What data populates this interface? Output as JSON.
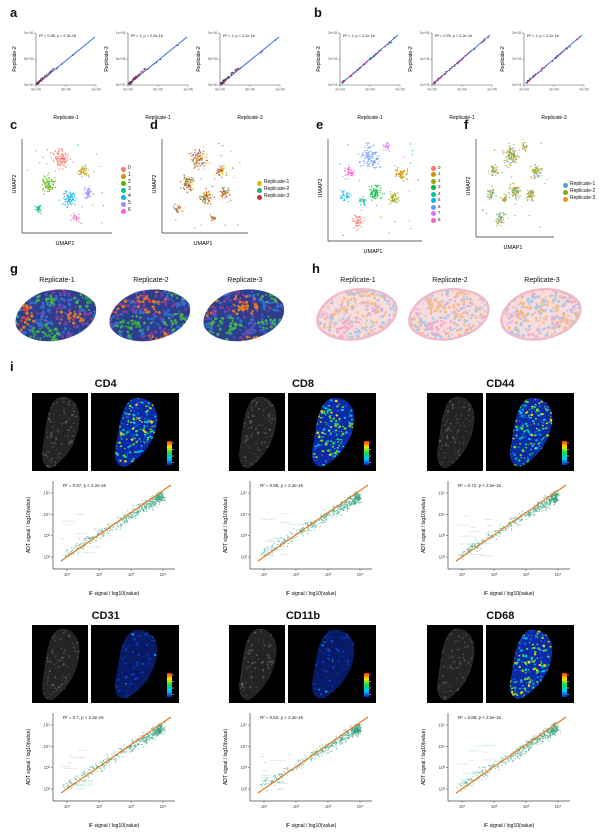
{
  "panels": {
    "a": {
      "label": "a",
      "plots": [
        {
          "annotation": "R² = 0.98, p < 2.2e-16",
          "xlabel": "Replicate-1",
          "ylabel": "Replicate-2"
        },
        {
          "annotation": "R² = 1, p < 2.2e-16",
          "xlabel": "Replicate-1",
          "ylabel": "Replicate-3"
        },
        {
          "annotation": "R² = 1, p < 2.2e-16",
          "xlabel": "Replicate-3",
          "ylabel": "Replicate-2"
        }
      ],
      "xticks": [
        "0e+00",
        "5e+05",
        "1e+06"
      ],
      "yticks": [
        "0e+00",
        "5e+05",
        "1e+06"
      ]
    },
    "b": {
      "label": "b",
      "plots": [
        {
          "annotation": "R² = 1, p < 2.2e-16",
          "xlabel": "Replicate-1",
          "ylabel": "Replicate-3"
        },
        {
          "annotation": "R² = 0.99, p < 2.2e-16",
          "xlabel": "Replicate-1",
          "ylabel": "Replicate-2"
        },
        {
          "annotation": "R² = 1, p < 2.2e-16",
          "xlabel": "Replicate-3",
          "ylabel": "Replicate-2"
        }
      ],
      "xticks": [
        "2e+03",
        "2e+04",
        "2e+05"
      ],
      "yticks": [
        "2e+03",
        "2e+04",
        "2e+05"
      ]
    },
    "c": {
      "label": "c",
      "xlabel": "UMAP1",
      "ylabel": "UMAP2",
      "legend": [
        {
          "label": "0",
          "color": "#F8766D"
        },
        {
          "label": "1",
          "color": "#C49A00"
        },
        {
          "label": "2",
          "color": "#53B400"
        },
        {
          "label": "3",
          "color": "#00C094"
        },
        {
          "label": "4",
          "color": "#00B6EB"
        },
        {
          "label": "5",
          "color": "#A58AFF"
        },
        {
          "label": "6",
          "color": "#FB61D7"
        }
      ]
    },
    "d": {
      "label": "d",
      "xlabel": "UMAP1",
      "ylabel": "UMAP2",
      "legend": [
        {
          "label": "Replicate-1",
          "color": "#E6B800"
        },
        {
          "label": "Replicate-2",
          "color": "#2EA87E"
        },
        {
          "label": "Replicate-3",
          "color": "#C0392B"
        }
      ]
    },
    "e": {
      "label": "e",
      "xlabel": "UMAP1",
      "ylabel": "UMAP2",
      "legend": [
        {
          "label": "0",
          "color": "#F8766D"
        },
        {
          "label": "1",
          "color": "#D39200"
        },
        {
          "label": "2",
          "color": "#93AA00"
        },
        {
          "label": "3",
          "color": "#00BA38"
        },
        {
          "label": "4",
          "color": "#00C19F"
        },
        {
          "label": "5",
          "color": "#00B9E3"
        },
        {
          "label": "6",
          "color": "#619CFF"
        },
        {
          "label": "7",
          "color": "#DB72FB"
        },
        {
          "label": "8",
          "color": "#FF61C3"
        }
      ]
    },
    "f": {
      "label": "f",
      "xlabel": "UMAP1",
      "ylabel": "UMAP2",
      "legend": [
        {
          "label": "Replicate-1",
          "color": "#4FA3D1"
        },
        {
          "label": "Replicate-2",
          "color": "#7CAE00"
        },
        {
          "label": "Replicate-3",
          "color": "#F28E2B"
        }
      ]
    },
    "g": {
      "label": "g",
      "titles": [
        "Replicate-1",
        "Replicate-2",
        "Replicate-3"
      ]
    },
    "h": {
      "label": "h",
      "titles": [
        "Replicate-1",
        "Replicate-2",
        "Replicate-3"
      ]
    },
    "i": {
      "label": "i",
      "xlabel": "IF signal / log10(value)",
      "ylabel": "ADT signal / log10(value)",
      "xticks": [
        "10¹",
        "10²",
        "10³",
        "10⁴"
      ],
      "yticks": [
        "10²",
        "10³",
        "10⁴",
        "10⁵"
      ],
      "markers": [
        {
          "name": "CD4",
          "annotation": "R² = 0.87, p < 2.2e-16",
          "heat": "high"
        },
        {
          "name": "CD8",
          "annotation": "R² = 0.86, p < 2.2e-16",
          "heat": "high"
        },
        {
          "name": "CD44",
          "annotation": "R² = 0.72, p < 2.2e-16",
          "heat": "high"
        },
        {
          "name": "CD31",
          "annotation": "R² = 0.7, p < 2.2e-16",
          "heat": "low"
        },
        {
          "name": "CD11b",
          "annotation": "R² = 0.52, p < 2.2e-16",
          "heat": "low"
        },
        {
          "name": "CD68",
          "annotation": "R² = 0.88, p < 2.2e-16",
          "heat": "high"
        }
      ]
    }
  },
  "colors": {
    "fit_line_blue": "#3b6fe0",
    "fit_line_orange": "#e8751a",
    "scatter_green": "#2e9e77"
  }
}
